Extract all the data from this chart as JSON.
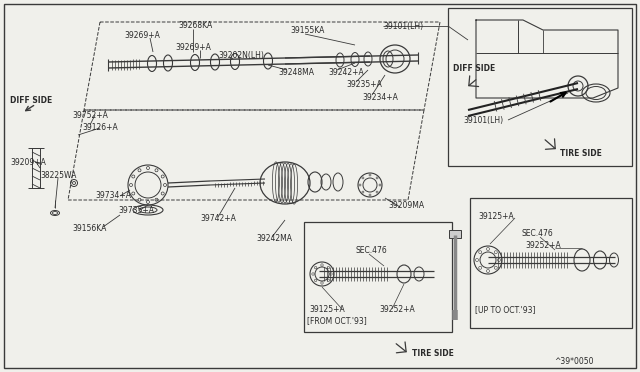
{
  "bg_color": "#f0f0eb",
  "line_color": "#3a3a3a",
  "text_color": "#2a2a2a",
  "part_number_ref": "^39*0050",
  "labels": {
    "diff_side_main": "DIFF SIDE",
    "diff_side_inset": "DIFF SIDE",
    "tire_side_inset": "TIRE SIDE",
    "tire_side_bottom": "TIRE SIDE",
    "39101_lh_top": "39101(LH)",
    "39101_lh_bottom": "39101(LH)",
    "39268ka": "39268KA",
    "39269_a_top": "39269+A",
    "39269_a_mid": "39269+A",
    "39202n_lh": "39202N(LH)",
    "39155ka": "39155KA",
    "39248ma": "39248MA",
    "39242_a": "39242+A",
    "39235_a": "39235+A",
    "39234_a": "39234+A",
    "39752_a": "39752+A",
    "39126_a": "39126+A",
    "39209_a": "39209+A",
    "38225wa": "38225WA",
    "39734_a": "39734+A",
    "39735_a": "39735+A",
    "39742_a": "39742+A",
    "39156ka": "39156KA",
    "39242ma": "39242MA",
    "39209ma": "39209MA",
    "sec476_left": "SEC.476",
    "sec476_right": "SEC.476",
    "39125_a_left": "39125+A",
    "39125_a_right": "39125+A",
    "39252_a_left": "39252+A",
    "39252_a_right": "39252+A",
    "from_oct93": "[FROM OCT.'93]",
    "up_to_oct93": "[UP TO OCT.'93]"
  },
  "fig_width": 6.4,
  "fig_height": 3.72,
  "dpi": 100
}
